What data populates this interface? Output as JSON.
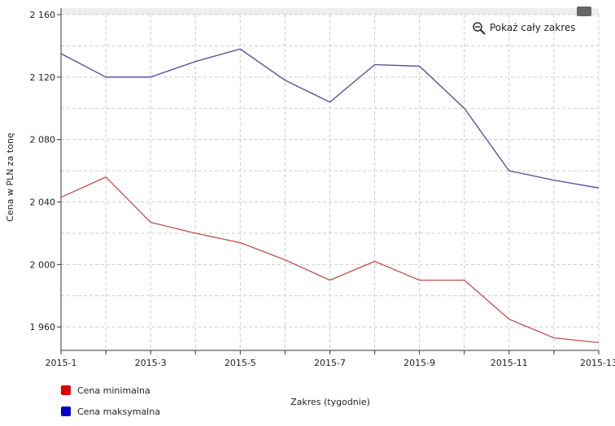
{
  "zoom_reset_label": "Pokaż cały zakres",
  "colors": {
    "min": "#dd0000",
    "max": "#0000cc",
    "min_line": "#c0504d",
    "max_line": "#4a4a9c"
  },
  "chart_data": {
    "type": "line",
    "x": [
      "2015-1",
      "2015-2",
      "2015-3",
      "2015-4",
      "2015-5",
      "2015-6",
      "2015-7",
      "2015-8",
      "2015-9",
      "2015-10",
      "2015-11",
      "2015-12",
      "2015-13"
    ],
    "x_tick_labels": [
      "2015-1",
      "2015-3",
      "2015-5",
      "2015-7",
      "2015-9",
      "2015-11",
      "2015-13"
    ],
    "y_ticks": [
      1960,
      2000,
      2040,
      2080,
      2120,
      2160
    ],
    "y_tick_labels": [
      "1 960",
      "2 000",
      "2 040",
      "2 080",
      "2 120",
      "2 160"
    ],
    "ylim": [
      1945,
      2160
    ],
    "xlabel": "Zakres (tygodnie)",
    "ylabel": "Cena w PLN za tonę",
    "grid": true,
    "legend_position": "bottom-left",
    "series": [
      {
        "name": "Cena minimalna",
        "values": [
          2043,
          2056,
          2027,
          2020,
          2014,
          2003,
          1990,
          2002,
          1990,
          1990,
          1965,
          1953,
          1950
        ]
      },
      {
        "name": "Cena maksymalna",
        "values": [
          2135,
          2120,
          2120,
          2130,
          2138,
          2118,
          2104,
          2128,
          2127,
          2100,
          2060,
          2054,
          2049
        ]
      }
    ]
  }
}
